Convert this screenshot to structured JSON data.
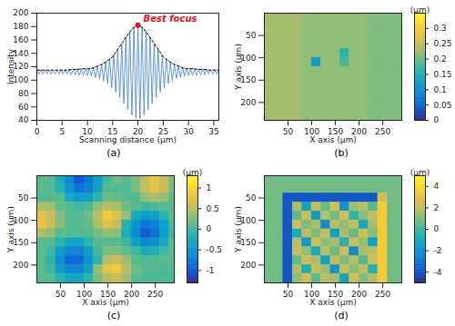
{
  "chart_data": [
    {
      "type": "line",
      "caption": "(a)",
      "xlabel": "Scanning distance (µm)",
      "ylabel": "Intensity",
      "xlim": [
        0,
        36
      ],
      "ylim": [
        40,
        200
      ],
      "xticks": [
        0,
        5,
        10,
        15,
        20,
        25,
        30,
        35
      ],
      "yticks": [
        40,
        60,
        80,
        100,
        120,
        140,
        160,
        180,
        200
      ],
      "series": [
        {
          "color": "#3d7fd6",
          "line_style": "solid",
          "x": [
            0,
            0.4,
            0.8,
            1.2,
            1.6,
            2,
            2.4,
            2.8,
            3.2,
            3.6,
            4,
            4.4,
            4.8,
            5.2,
            5.6,
            6,
            6.4,
            6.8,
            7.2,
            7.6,
            8,
            8.4,
            8.8,
            9.2,
            9.6,
            10,
            10.4,
            10.8,
            11.2,
            11.6,
            12,
            12.4,
            12.8,
            13.2,
            13.6,
            14,
            14.4,
            14.8,
            15.2,
            15.6,
            16,
            16.4,
            16.8,
            17.2,
            17.6,
            18,
            18.4,
            18.8,
            19.2,
            19.6,
            20,
            20.4,
            20.8,
            21.2,
            21.6,
            22,
            22.4,
            22.8,
            23.2,
            23.6,
            24,
            24.4,
            24.8,
            25.2,
            25.6,
            26,
            26.4,
            26.8,
            27.2,
            27.6,
            28,
            28.4,
            28.8,
            29.2,
            29.6,
            30,
            30.4,
            30.8,
            31.2,
            31.6,
            32,
            32.4,
            32.8,
            33.2,
            33.6,
            34,
            34.4,
            34.8,
            35.2,
            35.6,
            36
          ],
          "values": [
            115,
            109,
            115,
            109,
            115,
            109,
            115,
            109,
            115,
            109,
            115,
            109,
            115,
            109,
            115,
            109,
            116,
            108,
            116,
            108,
            116,
            107,
            117,
            107,
            117,
            107,
            118,
            106,
            119,
            104,
            121,
            102,
            123,
            99,
            127,
            95,
            132,
            89,
            138,
            82,
            146,
            74,
            154,
            65,
            164,
            56,
            172,
            48,
            179,
            43,
            182,
            43,
            179,
            48,
            172,
            56,
            164,
            65,
            154,
            74,
            146,
            82,
            138,
            89,
            132,
            95,
            127,
            99,
            123,
            102,
            121,
            104,
            119,
            106,
            118,
            107,
            117,
            107,
            117,
            107,
            116,
            108,
            116,
            108,
            116,
            109,
            115,
            109,
            115,
            109,
            115
          ]
        },
        {
          "color": "#000000",
          "line_style": "dashed",
          "x": [
            0,
            1,
            2,
            3,
            4,
            5,
            6,
            7,
            8,
            9,
            10,
            11,
            12,
            13,
            14,
            15,
            16,
            17,
            18,
            19,
            20,
            21,
            22,
            23,
            24,
            25,
            26,
            27,
            28,
            29,
            30,
            31,
            32,
            33,
            34,
            35,
            36
          ],
          "values": [
            115,
            115,
            115,
            115,
            115,
            115,
            115,
            116,
            116,
            117,
            117,
            118,
            121,
            124,
            129,
            135,
            146,
            157,
            168,
            178,
            182,
            178,
            168,
            157,
            146,
            135,
            129,
            124,
            121,
            118,
            117,
            117,
            116,
            116,
            115,
            115,
            115
          ]
        }
      ],
      "annotations": [
        {
          "text": "Best focus",
          "x": 20,
          "y": 182,
          "color": "#e8101a"
        }
      ]
    },
    {
      "type": "heatmap",
      "caption": "(b)",
      "xlabel": "X axis (µm)",
      "ylabel": "Y axis (µm)",
      "xlim": [
        0,
        290
      ],
      "ylim": [
        0,
        240
      ],
      "xticks": [
        50,
        100,
        150,
        200,
        250
      ],
      "yticks": [
        50,
        100,
        150,
        200
      ],
      "x": [
        10,
        30,
        50,
        70,
        90,
        110,
        130,
        150,
        170,
        190,
        210,
        230,
        250,
        270,
        290
      ],
      "y": [
        10,
        30,
        50,
        70,
        90,
        110,
        130,
        150,
        170,
        190,
        210,
        230
      ],
      "z": [
        [
          0.23,
          0.23,
          0.23,
          0.23,
          0.22,
          0.22,
          0.22,
          0.22,
          0.22,
          0.22,
          0.22,
          0.21,
          0.21,
          0.21,
          0.21
        ],
        [
          0.23,
          0.23,
          0.23,
          0.23,
          0.22,
          0.22,
          0.22,
          0.22,
          0.22,
          0.22,
          0.22,
          0.21,
          0.21,
          0.21,
          0.21
        ],
        [
          0.23,
          0.23,
          0.23,
          0.23,
          0.22,
          0.22,
          0.22,
          0.22,
          0.22,
          0.22,
          0.22,
          0.21,
          0.21,
          0.21,
          0.21
        ],
        [
          0.23,
          0.23,
          0.23,
          0.23,
          0.22,
          0.22,
          0.22,
          0.22,
          0.22,
          0.22,
          0.22,
          0.21,
          0.21,
          0.21,
          0.21
        ],
        [
          0.23,
          0.23,
          0.23,
          0.23,
          0.22,
          0.22,
          0.22,
          0.22,
          0.16,
          0.22,
          0.22,
          0.21,
          0.21,
          0.21,
          0.21
        ],
        [
          0.23,
          0.23,
          0.23,
          0.23,
          0.22,
          0.12,
          0.22,
          0.22,
          0.18,
          0.22,
          0.22,
          0.21,
          0.21,
          0.21,
          0.21
        ],
        [
          0.23,
          0.23,
          0.23,
          0.23,
          0.22,
          0.22,
          0.22,
          0.22,
          0.22,
          0.22,
          0.22,
          0.21,
          0.21,
          0.21,
          0.21
        ],
        [
          0.23,
          0.23,
          0.23,
          0.23,
          0.22,
          0.22,
          0.22,
          0.22,
          0.22,
          0.22,
          0.22,
          0.21,
          0.21,
          0.21,
          0.21
        ],
        [
          0.23,
          0.23,
          0.23,
          0.23,
          0.22,
          0.22,
          0.22,
          0.22,
          0.22,
          0.22,
          0.22,
          0.21,
          0.21,
          0.21,
          0.21
        ],
        [
          0.23,
          0.23,
          0.23,
          0.23,
          0.22,
          0.22,
          0.22,
          0.22,
          0.22,
          0.22,
          0.22,
          0.21,
          0.21,
          0.21,
          0.21
        ],
        [
          0.23,
          0.23,
          0.23,
          0.23,
          0.22,
          0.22,
          0.22,
          0.22,
          0.22,
          0.22,
          0.22,
          0.21,
          0.21,
          0.21,
          0.21
        ],
        [
          0.23,
          0.23,
          0.23,
          0.23,
          0.22,
          0.22,
          0.22,
          0.22,
          0.22,
          0.22,
          0.22,
          0.21,
          0.21,
          0.21,
          0.21
        ]
      ],
      "colorbar_range": [
        0,
        0.35
      ],
      "colorbar_ticks": [
        0,
        0.05,
        0.1,
        0.15,
        0.2,
        0.25,
        0.3
      ],
      "colorbar_label": "(µm)"
    },
    {
      "type": "heatmap",
      "caption": "(c)",
      "xlabel": "X axis (µm)",
      "ylabel": "Y axis (µm)",
      "xlim": [
        0,
        290
      ],
      "ylim": [
        0,
        240
      ],
      "xticks": [
        50,
        100,
        150,
        200,
        250
      ],
      "yticks": [
        50,
        100,
        150,
        200
      ],
      "x": [
        10,
        30,
        50,
        70,
        90,
        110,
        130,
        150,
        170,
        190,
        210,
        230,
        250,
        270,
        290
      ],
      "y": [
        10,
        30,
        50,
        70,
        90,
        110,
        130,
        150,
        170,
        190,
        210,
        230
      ],
      "z": [
        [
          0.1,
          0.1,
          -0.2,
          -0.6,
          -1.0,
          -0.8,
          -0.4,
          0,
          0.2,
          0.1,
          0.25,
          0.55,
          0.8,
          0.55,
          0.25
        ],
        [
          0.1,
          0.1,
          -0.15,
          -0.5,
          -0.8,
          -0.7,
          -0.35,
          0.1,
          0.1,
          0.1,
          0.25,
          0.55,
          0.75,
          0.55,
          0.25
        ],
        [
          0.1,
          0.1,
          0.1,
          -0.25,
          -0.4,
          -0.35,
          -0.1,
          0.2,
          0.15,
          0.1,
          0.1,
          0.35,
          0.45,
          0.35,
          0.1
        ],
        [
          0.45,
          0.4,
          0.15,
          0.1,
          0,
          0.05,
          0.35,
          0.5,
          0.45,
          0.2,
          0.1,
          0,
          0.05,
          0.1,
          0.1
        ],
        [
          0.75,
          0.6,
          0.3,
          0.1,
          0.1,
          0.2,
          0.5,
          0.9,
          0.7,
          0.35,
          -0.25,
          -0.4,
          -0.35,
          -0.1,
          0.1
        ],
        [
          0.8,
          0.6,
          0.3,
          0.1,
          0.1,
          0.15,
          0.45,
          0.7,
          0.6,
          -0.15,
          -0.5,
          -0.8,
          -0.7,
          -0.35,
          0.05
        ],
        [
          0.45,
          0.35,
          0.1,
          0.1,
          0.1,
          0.1,
          0.2,
          0.35,
          0.3,
          -0.2,
          -0.6,
          -1.0,
          -0.8,
          -0.4,
          0
        ],
        [
          0.1,
          0.1,
          -0.1,
          -0.3,
          -0.3,
          -0.1,
          0.1,
          0.1,
          0.1,
          0,
          -0.4,
          -0.6,
          -0.5,
          -0.25,
          0.1
        ],
        [
          0.1,
          0,
          -0.4,
          -0.65,
          -0.65,
          -0.4,
          0,
          0.25,
          0.25,
          0.15,
          0,
          -0.2,
          -0.15,
          0,
          0.1
        ],
        [
          0.1,
          -0.1,
          -0.5,
          -0.9,
          -0.9,
          -0.5,
          -0.1,
          0.5,
          0.6,
          0.4,
          0.1,
          0.1,
          0.1,
          0.1,
          0.1
        ],
        [
          0.1,
          0,
          -0.4,
          -0.65,
          -0.65,
          -0.4,
          0.35,
          0.75,
          0.9,
          0.5,
          0.2,
          0.1,
          0.1,
          0.05,
          0.05
        ],
        [
          0.1,
          0.1,
          -0.1,
          -0.3,
          -0.3,
          -0.1,
          0.25,
          0.5,
          0.6,
          0.4,
          0.1,
          0.05,
          0.05,
          0.05,
          0.05
        ]
      ],
      "colorbar_range": [
        -1.3,
        1.3
      ],
      "colorbar_ticks": [
        -1,
        -0.5,
        0,
        0.5,
        1
      ],
      "colorbar_label": "(µm)"
    },
    {
      "type": "heatmap",
      "caption": "(d)",
      "xlabel": "X axis (µm)",
      "ylabel": "Y axis (µm)",
      "xlim": [
        0,
        290
      ],
      "ylim": [
        0,
        240
      ],
      "xticks": [
        50,
        100,
        150,
        200,
        250
      ],
      "yticks": [
        50,
        100,
        150,
        200
      ],
      "x": [
        10,
        30,
        50,
        70,
        90,
        110,
        130,
        150,
        170,
        190,
        210,
        230,
        250,
        270,
        290
      ],
      "y": [
        10,
        30,
        50,
        70,
        90,
        110,
        130,
        150,
        170,
        190,
        210,
        230
      ],
      "z": [
        [
          0.8,
          0.8,
          0.8,
          0.8,
          0.8,
          0.8,
          0.8,
          0.8,
          0.8,
          0.8,
          0.8,
          0.8,
          0.8,
          0.8,
          0.8
        ],
        [
          0.8,
          0.8,
          0.8,
          0.8,
          0.8,
          0.8,
          0.8,
          0.8,
          0.8,
          0.8,
          0.8,
          0.8,
          0.8,
          0.8,
          0.8
        ],
        [
          0.8,
          0.8,
          -4,
          -4,
          -4,
          -4,
          -4,
          -4,
          -4,
          -4,
          -4,
          -4,
          2.5,
          0.8,
          0.8
        ],
        [
          0.8,
          0.8,
          -4,
          1.8,
          -1.2,
          2.2,
          0.6,
          2.4,
          -2.0,
          1.5,
          2.0,
          0.4,
          3.5,
          0.8,
          0.8
        ],
        [
          0.8,
          0.8,
          -4,
          0.5,
          2.3,
          -1.6,
          1.9,
          0.8,
          2.5,
          -0.4,
          1.2,
          2.1,
          3.5,
          0.8,
          0.8
        ],
        [
          0.8,
          0.8,
          -4,
          2.4,
          1.0,
          1.7,
          -2.2,
          2.0,
          1.3,
          2.2,
          -1.0,
          1.6,
          3.5,
          0.8,
          0.8
        ],
        [
          0.8,
          0.8,
          -4,
          -0.8,
          2.1,
          0.9,
          2.3,
          -1.4,
          1.8,
          0.6,
          2.4,
          1.1,
          3.5,
          0.8,
          0.8
        ],
        [
          0.8,
          0.8,
          -4,
          1.9,
          -1.8,
          2.4,
          1.2,
          1.7,
          -0.6,
          2.3,
          1.4,
          -1.5,
          3.5,
          0.8,
          0.8
        ],
        [
          0.8,
          0.8,
          -4,
          2.2,
          1.4,
          -0.9,
          2.0,
          0.7,
          2.4,
          -2.1,
          1.8,
          2.0,
          3.5,
          0.8,
          0.8
        ],
        [
          0.8,
          0.8,
          -4,
          0.6,
          2.3,
          1.8,
          -1.3,
          2.2,
          1.0,
          1.9,
          0.3,
          2.4,
          3.5,
          0.8,
          0.8
        ],
        [
          0.8,
          0.8,
          -4,
          2.0,
          -0.7,
          2.2,
          1.5,
          -1.9,
          2.3,
          1.2,
          2.1,
          -0.5,
          3.5,
          0.8,
          0.8
        ],
        [
          0.8,
          0.8,
          -4,
          1.3,
          2.4,
          0.4,
          2.1,
          1.6,
          -1.1,
          2.4,
          1.0,
          1.9,
          3.5,
          0.8,
          0.8
        ]
      ],
      "colorbar_range": [
        -5,
        5
      ],
      "colorbar_ticks": [
        -4,
        -2,
        0,
        2,
        4
      ],
      "colorbar_label": "(µm)"
    }
  ]
}
